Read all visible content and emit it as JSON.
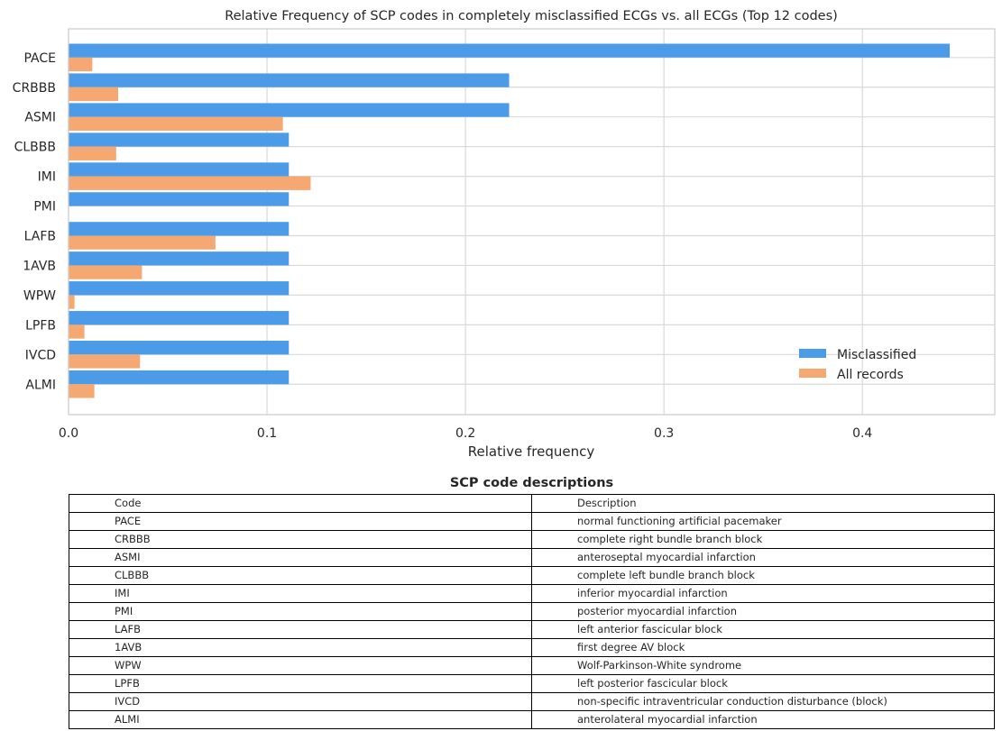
{
  "chart_data": {
    "type": "bar",
    "orientation": "horizontal",
    "title": "Relative Frequency of SCP codes in completely misclassified ECGs vs. all ECGs (Top 12 codes)",
    "xlabel": "Relative frequency",
    "ylabel": "",
    "xlim": [
      0,
      0.4667
    ],
    "xticks": [
      "0.0",
      "0.1",
      "0.2",
      "0.3",
      "0.4"
    ],
    "grid": true,
    "legend_position": "lower-right",
    "categories": [
      "PACE",
      "CRBBB",
      "ASMI",
      "CLBBB",
      "IMI",
      "PMI",
      "LAFB",
      "1AVB",
      "WPW",
      "LPFB",
      "IVCD",
      "ALMI"
    ],
    "series": [
      {
        "name": "Misclassified",
        "color": "#4c9be8",
        "values": [
          0.444,
          0.222,
          0.222,
          0.111,
          0.111,
          0.111,
          0.111,
          0.111,
          0.111,
          0.111,
          0.111,
          0.111
        ]
      },
      {
        "name": "All records",
        "color": "#f5a872",
        "values": [
          0.012,
          0.025,
          0.108,
          0.024,
          0.122,
          0.0,
          0.074,
          0.037,
          0.003,
          0.008,
          0.036,
          0.013
        ]
      }
    ]
  },
  "table": {
    "title": "SCP code descriptions",
    "header": [
      "Code",
      "Description"
    ],
    "rows": [
      [
        "PACE",
        "normal functioning artificial pacemaker"
      ],
      [
        "CRBBB",
        "complete right bundle branch block"
      ],
      [
        "ASMI",
        "anteroseptal myocardial infarction"
      ],
      [
        "CLBBB",
        "complete left bundle branch block"
      ],
      [
        "IMI",
        "inferior myocardial infarction"
      ],
      [
        "PMI",
        "posterior myocardial infarction"
      ],
      [
        "LAFB",
        "left anterior fascicular block"
      ],
      [
        "1AVB",
        "first degree AV block"
      ],
      [
        "WPW",
        "Wolf-Parkinson-White syndrome"
      ],
      [
        "LPFB",
        "left posterior fascicular block"
      ],
      [
        "IVCD",
        "non-specific intraventricular conduction disturbance (block)"
      ],
      [
        "ALMI",
        "anterolateral myocardial infarction"
      ]
    ]
  }
}
